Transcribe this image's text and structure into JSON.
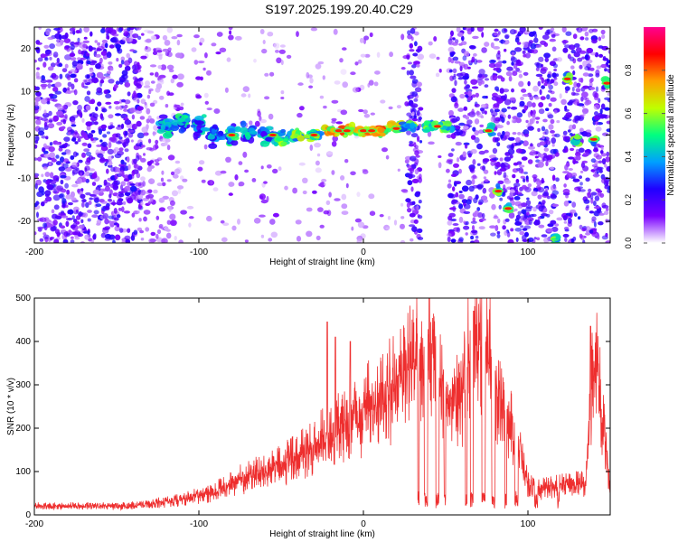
{
  "title": "S197.2025.199.20.40.C29",
  "chart_data": [
    {
      "type": "heatmap",
      "xlabel": "Height of straight line (km)",
      "ylabel": "Frequency (Hz)",
      "xlim": [
        -200,
        150
      ],
      "ylim": [
        -25,
        25
      ],
      "xticks": [
        "-200",
        "-100",
        "0",
        "100"
      ],
      "yticks": [
        "-20",
        "-10",
        "0",
        "10",
        "20"
      ],
      "colorbar": {
        "label": "Normalized spectral amplitude",
        "range": [
          0,
          1
        ],
        "ticks": [
          "0.0",
          "0.2",
          "0.4",
          "0.6",
          "0.8"
        ],
        "colors": [
          "#ffffff",
          "#7a00ff",
          "#2000ff",
          "#00a0ff",
          "#00ff80",
          "#c0ff00",
          "#ffa000",
          "#ff0000",
          "#ff0090"
        ]
      },
      "main_trace": {
        "x": [
          -120,
          -110,
          -100,
          -90,
          -80,
          -70,
          -60,
          -50,
          -40,
          -30,
          -20,
          -10,
          0,
          10,
          20,
          27,
          40,
          50,
          77,
          82,
          88,
          117,
          124,
          130,
          140,
          148
        ],
        "y": [
          2,
          3,
          2,
          0,
          0,
          0,
          0,
          -1,
          0,
          0,
          1,
          1,
          1,
          1,
          2,
          2,
          2,
          2,
          1,
          -13,
          -17,
          -24,
          13,
          -1,
          -1,
          12
        ]
      },
      "noise_regions_x": [
        [
          -200,
          -120
        ],
        [
          27,
          35
        ],
        [
          52,
          75
        ],
        [
          78,
          118
        ],
        [
          122,
          150
        ]
      ],
      "blank_regions_x": [
        [
          35,
          40
        ],
        [
          75,
          78
        ]
      ]
    },
    {
      "type": "line",
      "color": "#ee2e2e",
      "xlabel": "Height of straight line (km)",
      "ylabel": "SNR (10 * v/v)",
      "xlim": [
        -200,
        150
      ],
      "ylim": [
        0,
        500
      ],
      "xticks": [
        "-200",
        "-100",
        "0",
        "100"
      ],
      "yticks": [
        "0",
        "100",
        "200",
        "300",
        "400",
        "500"
      ],
      "envelope": {
        "x": [
          -200,
          -150,
          -130,
          -110,
          -90,
          -75,
          -60,
          -40,
          -25,
          -15,
          -5,
          5,
          15,
          25,
          30,
          35,
          40,
          45,
          50,
          60,
          65,
          70,
          75,
          80,
          85,
          90,
          95,
          100,
          110,
          125,
          135,
          140,
          145,
          150
        ],
        "y": [
          20,
          20,
          25,
          35,
          55,
          80,
          100,
          130,
          170,
          200,
          230,
          250,
          280,
          330,
          350,
          370,
          390,
          320,
          240,
          280,
          380,
          400,
          390,
          300,
          250,
          200,
          150,
          70,
          60,
          70,
          70,
          370,
          250,
          60
        ]
      },
      "dips_x": [
        [
          33,
          34
        ],
        [
          37,
          39
        ],
        [
          44,
          46
        ],
        [
          49,
          50
        ],
        [
          62,
          63
        ],
        [
          65,
          67
        ],
        [
          72,
          74
        ],
        [
          78,
          80
        ],
        [
          86,
          87
        ],
        [
          92,
          94
        ],
        [
          104,
          106
        ],
        [
          118,
          119
        ]
      ],
      "spikes": [
        {
          "x": -22,
          "y": 445
        },
        {
          "x": -17,
          "y": 410
        },
        {
          "x": -8,
          "y": 400
        },
        {
          "x": 40,
          "y": 500
        },
        {
          "x": 67,
          "y": 470
        },
        {
          "x": 138,
          "y": 435
        }
      ]
    }
  ]
}
